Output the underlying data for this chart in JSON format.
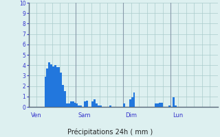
{
  "title": "",
  "xlabel": "Précipitations 24h ( mm )",
  "ylabel": "",
  "ylim": [
    0,
    10
  ],
  "yticks": [
    0,
    1,
    2,
    3,
    4,
    5,
    6,
    7,
    8,
    9,
    10
  ],
  "background_color": "#ddf0f0",
  "plot_bg_color": "#ddf0f0",
  "bar_color": "#2277dd",
  "grid_color": "#aacccc",
  "day_line_color": "#8899aa",
  "tick_color": "#3333cc",
  "total_bars": 96,
  "day_labels": [
    "Ven",
    "Sam",
    "Dim",
    "Lun"
  ],
  "day_positions": [
    0,
    24,
    48,
    72
  ],
  "values": [
    0.0,
    0.0,
    0.0,
    0.0,
    0.0,
    0.0,
    0.0,
    0.0,
    2.9,
    3.7,
    4.3,
    4.1,
    3.9,
    4.0,
    3.8,
    3.8,
    3.3,
    2.1,
    1.5,
    0.3,
    0.3,
    0.5,
    0.5,
    0.4,
    0.3,
    0.1,
    0.1,
    0.0,
    0.5,
    0.6,
    0.0,
    0.0,
    0.5,
    0.7,
    0.3,
    0.1,
    0.1,
    0.0,
    0.0,
    0.0,
    0.0,
    0.1,
    0.0,
    0.0,
    0.0,
    0.0,
    0.0,
    0.0,
    0.3,
    0.0,
    0.0,
    0.7,
    0.9,
    1.4,
    0.0,
    0.0,
    0.0,
    0.0,
    0.0,
    0.0,
    0.0,
    0.0,
    0.0,
    0.0,
    0.3,
    0.3,
    0.4,
    0.4,
    0.0,
    0.0,
    0.0,
    0.1,
    0.0,
    0.9,
    0.1,
    0.0,
    0.0,
    0.0,
    0.0,
    0.0,
    0.0,
    0.0,
    0.0,
    0.0,
    0.0,
    0.0,
    0.0,
    0.0,
    0.0,
    0.0,
    0.0,
    0.0,
    0.0,
    0.0,
    0.0,
    0.0
  ]
}
